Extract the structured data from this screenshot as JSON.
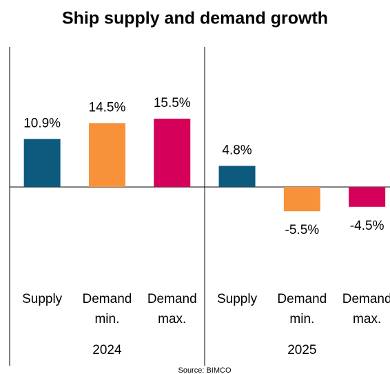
{
  "chart_data": {
    "type": "bar",
    "title": "Ship supply and demand growth",
    "categories": [
      "Supply",
      "Demand min.",
      "Demand max.",
      "Supply",
      "Demand min.",
      "Demand max."
    ],
    "groups": [
      "2024",
      "2025"
    ],
    "values": [
      10.9,
      14.5,
      15.5,
      4.8,
      -5.5,
      -4.5
    ],
    "value_labels": [
      "10.9%",
      "14.5%",
      "15.5%",
      "4.8%",
      "-5.5%",
      "-4.5%"
    ],
    "colors": [
      "#0e5a7e",
      "#f7923a",
      "#d40059",
      "#0e5a7e",
      "#f7923a",
      "#d40059"
    ],
    "ylim": [
      -10,
      20
    ],
    "source": "Source: BIMCO"
  }
}
